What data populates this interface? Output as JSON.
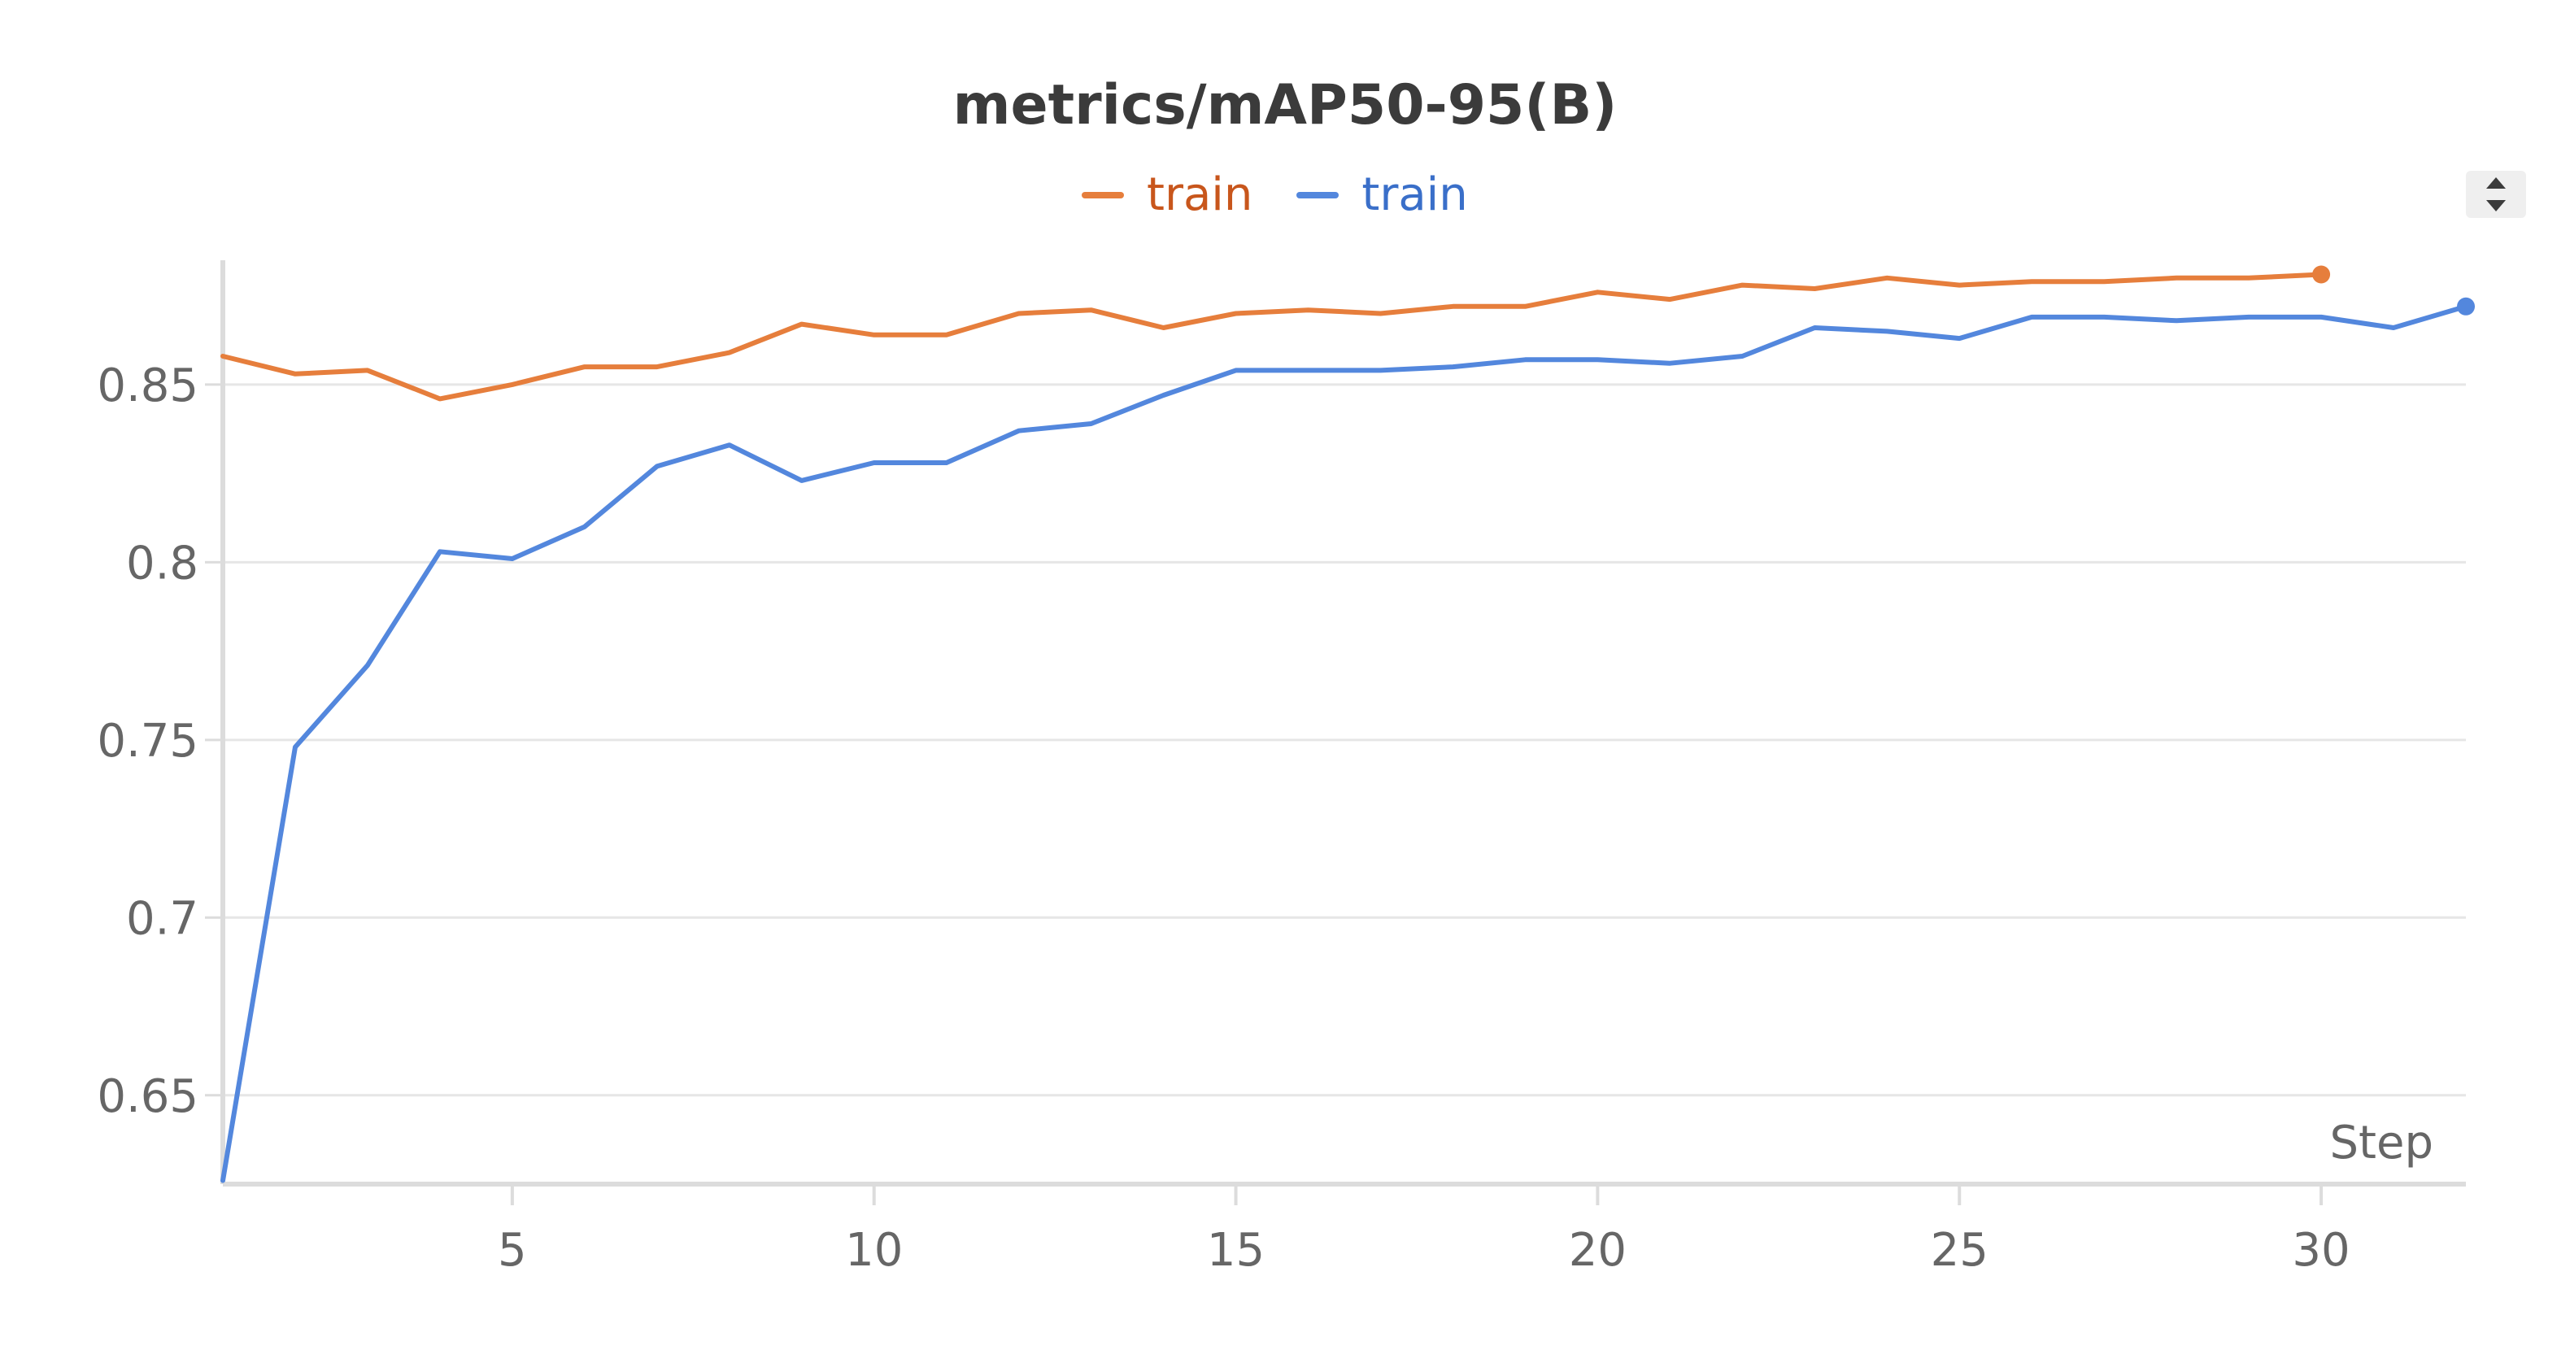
{
  "chart_data": {
    "type": "line",
    "title": "metrics/mAP50-95(B)",
    "xlabel": "Step",
    "ylabel": "",
    "xlim": [
      1,
      32
    ],
    "ylim": [
      0.625,
      0.885
    ],
    "x_ticks": [
      5,
      10,
      15,
      20,
      25,
      30
    ],
    "x_tick_labels": [
      "5",
      "10",
      "15",
      "20",
      "25",
      "30"
    ],
    "y_ticks": [
      0.65,
      0.7,
      0.75,
      0.8,
      0.85
    ],
    "y_tick_labels": [
      "0.65",
      "0.7",
      "0.75",
      "0.8",
      "0.85"
    ],
    "grid": "horizontal",
    "legend_position": "top-center",
    "series": [
      {
        "name": "train",
        "color": "#e67e3c",
        "x": [
          1,
          2,
          3,
          4,
          5,
          6,
          7,
          8,
          9,
          10,
          11,
          12,
          13,
          14,
          15,
          16,
          17,
          18,
          19,
          20,
          21,
          22,
          23,
          24,
          25,
          26,
          27,
          28,
          29,
          30
        ],
        "values": [
          0.858,
          0.853,
          0.854,
          0.846,
          0.85,
          0.855,
          0.855,
          0.859,
          0.867,
          0.864,
          0.864,
          0.87,
          0.871,
          0.866,
          0.87,
          0.871,
          0.87,
          0.872,
          0.872,
          0.876,
          0.874,
          0.878,
          0.877,
          0.88,
          0.878,
          0.879,
          0.879,
          0.88,
          0.88,
          0.881
        ]
      },
      {
        "name": "train",
        "color": "#5387dd",
        "x": [
          1,
          2,
          3,
          4,
          5,
          6,
          7,
          8,
          9,
          10,
          11,
          12,
          13,
          14,
          15,
          16,
          17,
          18,
          19,
          20,
          21,
          22,
          23,
          24,
          25,
          26,
          27,
          28,
          29,
          30,
          31,
          32
        ],
        "values": [
          0.626,
          0.748,
          0.771,
          0.803,
          0.801,
          0.81,
          0.827,
          0.833,
          0.823,
          0.828,
          0.828,
          0.837,
          0.839,
          0.847,
          0.854,
          0.854,
          0.854,
          0.855,
          0.857,
          0.857,
          0.856,
          0.858,
          0.866,
          0.865,
          0.863,
          0.869,
          0.869,
          0.868,
          0.869,
          0.869,
          0.866,
          0.872
        ]
      }
    ]
  },
  "ui": {
    "scroll_icon": "sort-arrows-icon"
  }
}
